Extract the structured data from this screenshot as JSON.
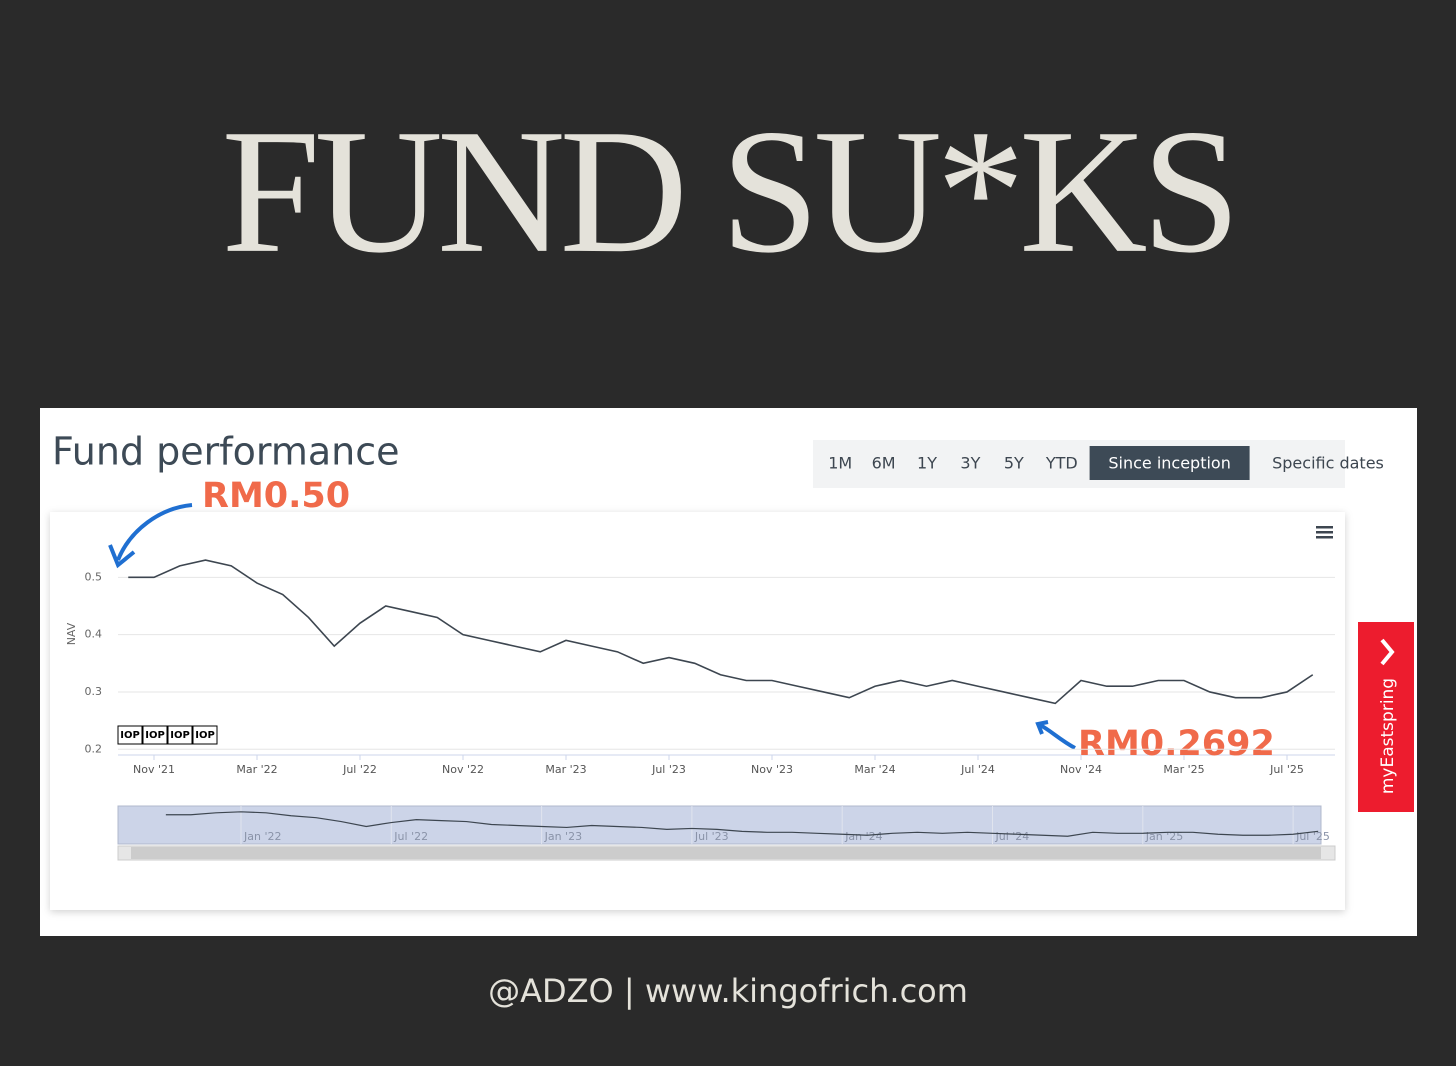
{
  "header": {
    "title": "FUND SU*KS"
  },
  "chart_data": {
    "type": "line",
    "title": "Fund performance",
    "range_buttons": [
      "1M",
      "6M",
      "1Y",
      "3Y",
      "5Y",
      "YTD",
      "Since inception",
      "Specific dates"
    ],
    "selected_range": 6,
    "y_label": "NAV",
    "x": [
      "2021-10",
      "2021-11",
      "2021-12",
      "2022-01",
      "2022-02",
      "2022-03",
      "2022-04",
      "2022-05",
      "2022-06",
      "2022-07",
      "2022-08",
      "2022-09",
      "2022-10",
      "2022-11",
      "2022-12",
      "2023-01",
      "2023-02",
      "2023-03",
      "2023-04",
      "2023-05",
      "2023-06",
      "2023-07",
      "2023-08",
      "2023-09",
      "2023-10",
      "2023-11",
      "2023-12",
      "2024-01",
      "2024-02",
      "2024-03",
      "2024-04",
      "2024-05",
      "2024-06",
      "2024-07",
      "2024-08",
      "2024-09",
      "2024-10",
      "2024-11",
      "2024-12",
      "2025-01",
      "2025-02",
      "2025-03",
      "2025-04",
      "2025-05",
      "2025-06",
      "2025-07",
      "2025-08"
    ],
    "series": [
      {
        "name": "NAV",
        "color": "#3d4650",
        "values": [
          0.5,
          0.5,
          0.52,
          0.53,
          0.52,
          0.49,
          0.47,
          0.43,
          0.38,
          0.42,
          0.45,
          0.44,
          0.43,
          0.4,
          0.39,
          0.38,
          0.37,
          0.39,
          0.38,
          0.37,
          0.35,
          0.36,
          0.35,
          0.33,
          0.32,
          0.32,
          0.31,
          0.3,
          0.29,
          0.31,
          0.32,
          0.31,
          0.32,
          0.31,
          0.3,
          0.29,
          0.28,
          0.32,
          0.31,
          0.31,
          0.32,
          0.32,
          0.3,
          0.29,
          0.29,
          0.3,
          0.33
        ]
      }
    ],
    "ylim": [
      0.19,
      0.6
    ],
    "yticks": [
      0.2,
      0.3,
      0.4,
      0.5
    ],
    "xticks": [
      {
        "value": "2021-11",
        "label": "Nov '21"
      },
      {
        "value": "2022-03",
        "label": "Mar '22"
      },
      {
        "value": "2022-07",
        "label": "Jul '22"
      },
      {
        "value": "2022-11",
        "label": "Nov '22"
      },
      {
        "value": "2023-03",
        "label": "Mar '23"
      },
      {
        "value": "2023-07",
        "label": "Jul '23"
      },
      {
        "value": "2023-11",
        "label": "Nov '23"
      },
      {
        "value": "2024-03",
        "label": "Mar '24"
      },
      {
        "value": "2024-07",
        "label": "Jul '24"
      },
      {
        "value": "2024-11",
        "label": "Nov '24"
      },
      {
        "value": "2025-03",
        "label": "Mar '25"
      },
      {
        "value": "2025-07",
        "label": "Jul '25"
      }
    ],
    "navigator_xticks": [
      {
        "value": "2022-01",
        "label": "Jan '22"
      },
      {
        "value": "2022-07",
        "label": "Jul '22"
      },
      {
        "value": "2023-01",
        "label": "Jan '23"
      },
      {
        "value": "2023-07",
        "label": "Jul '23"
      },
      {
        "value": "2024-01",
        "label": "Jan '24"
      },
      {
        "value": "2024-07",
        "label": "Jul '24"
      },
      {
        "value": "2025-01",
        "label": "Jan '25"
      },
      {
        "value": "2025-07",
        "label": "Jul '25"
      }
    ],
    "flags": [
      "IOP",
      "IOP",
      "IOP",
      "IOP"
    ],
    "grid": true,
    "annotations": [
      "RM0.50",
      "RM0.2692"
    ],
    "side_tab": "myEastspring"
  },
  "footer": {
    "credit": "@ADZO | www.kingofrich.com"
  }
}
